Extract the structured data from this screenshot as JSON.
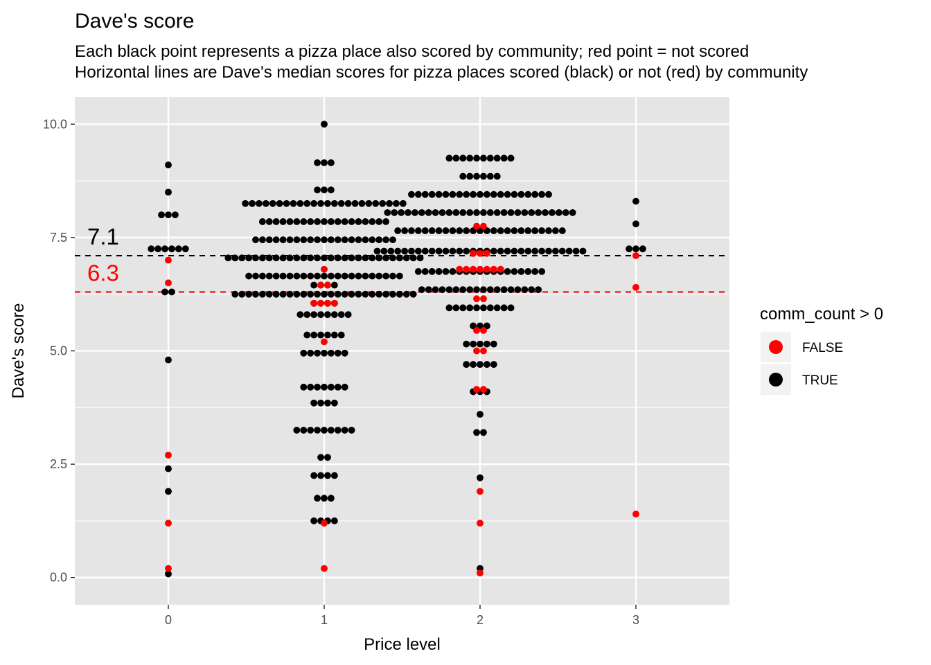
{
  "chart_data": {
    "type": "scatter",
    "title": "Dave's score",
    "subtitle_lines": [
      "Each black point represents a pizza place also scored by community; red point = not scored",
      "Horizontal lines are Dave's median scores for pizza places scored (black) or not (red) by community"
    ],
    "xlabel": "Price level",
    "ylabel": "Dave's score",
    "xlim": [
      -0.6,
      3.6
    ],
    "ylim": [
      -0.6,
      10.6
    ],
    "x_ticks": [
      0,
      1,
      2,
      3
    ],
    "x_tick_labels": [
      "0",
      "1",
      "2",
      "3"
    ],
    "y_ticks": [
      0,
      2.5,
      5,
      7.5,
      10
    ],
    "y_tick_labels": [
      "0.0",
      "2.5",
      "5.0",
      "7.5",
      "10.0"
    ],
    "grid": true,
    "legend": {
      "title": "comm_count > 0",
      "placement": "right",
      "entries": [
        {
          "label": "FALSE",
          "color": "#ff0000"
        },
        {
          "label": "TRUE",
          "color": "#000000"
        }
      ]
    },
    "medians": [
      {
        "group": "TRUE",
        "value": 7.1,
        "label": "7.1",
        "color": "#000000"
      },
      {
        "group": "FALSE",
        "value": 6.3,
        "label": "6.3",
        "color": "#ff0000"
      }
    ],
    "point_radius_data": 0.022,
    "series": [
      {
        "group": "TRUE",
        "color": "#000000",
        "bins": [
          {
            "x": 0,
            "y": 0.08,
            "n": 1
          },
          {
            "x": 0,
            "y": 1.9,
            "n": 1
          },
          {
            "x": 0,
            "y": 2.4,
            "n": 1
          },
          {
            "x": 0,
            "y": 4.8,
            "n": 1
          },
          {
            "x": 0,
            "y": 6.3,
            "n": 2
          },
          {
            "x": 0,
            "y": 7.25,
            "n": 6
          },
          {
            "x": 0,
            "y": 8.0,
            "n": 3
          },
          {
            "x": 0,
            "y": 8.5,
            "n": 1
          },
          {
            "x": 0,
            "y": 9.1,
            "n": 1
          },
          {
            "x": 1,
            "y": 1.25,
            "n": 4
          },
          {
            "x": 1,
            "y": 1.75,
            "n": 3
          },
          {
            "x": 1,
            "y": 2.25,
            "n": 4
          },
          {
            "x": 1,
            "y": 2.65,
            "n": 2
          },
          {
            "x": 1,
            "y": 3.25,
            "n": 9
          },
          {
            "x": 1,
            "y": 3.85,
            "n": 4
          },
          {
            "x": 1,
            "y": 4.2,
            "n": 7
          },
          {
            "x": 1,
            "y": 4.95,
            "n": 7
          },
          {
            "x": 1,
            "y": 5.35,
            "n": 6
          },
          {
            "x": 1,
            "y": 5.8,
            "n": 8
          },
          {
            "x": 1,
            "y": 6.05,
            "n": 4
          },
          {
            "x": 1,
            "y": 6.25,
            "n": 27
          },
          {
            "x": 1,
            "y": 6.45,
            "n": 4
          },
          {
            "x": 1,
            "y": 6.65,
            "n": 23
          },
          {
            "x": 1,
            "y": 7.05,
            "n": 29
          },
          {
            "x": 1,
            "y": 7.45,
            "n": 21
          },
          {
            "x": 1,
            "y": 7.85,
            "n": 19
          },
          {
            "x": 1,
            "y": 8.25,
            "n": 24
          },
          {
            "x": 1,
            "y": 8.55,
            "n": 3
          },
          {
            "x": 1,
            "y": 9.15,
            "n": 3
          },
          {
            "x": 1,
            "y": 10.0,
            "n": 1
          },
          {
            "x": 2,
            "y": 0.2,
            "n": 1
          },
          {
            "x": 2,
            "y": 2.2,
            "n": 1
          },
          {
            "x": 2,
            "y": 3.2,
            "n": 2
          },
          {
            "x": 2,
            "y": 3.6,
            "n": 1
          },
          {
            "x": 2,
            "y": 4.1,
            "n": 3
          },
          {
            "x": 2,
            "y": 4.7,
            "n": 5
          },
          {
            "x": 2,
            "y": 5.15,
            "n": 5
          },
          {
            "x": 2,
            "y": 5.55,
            "n": 3
          },
          {
            "x": 2,
            "y": 5.95,
            "n": 10
          },
          {
            "x": 2,
            "y": 6.35,
            "n": 18
          },
          {
            "x": 2,
            "y": 6.75,
            "n": 19
          },
          {
            "x": 2,
            "y": 7.2,
            "n": 31
          },
          {
            "x": 2,
            "y": 7.65,
            "n": 25
          },
          {
            "x": 2,
            "y": 8.05,
            "n": 28
          },
          {
            "x": 2,
            "y": 8.45,
            "n": 21
          },
          {
            "x": 2,
            "y": 8.85,
            "n": 6
          },
          {
            "x": 2,
            "y": 9.25,
            "n": 10
          },
          {
            "x": 3,
            "y": 7.25,
            "n": 3
          },
          {
            "x": 3,
            "y": 7.8,
            "n": 1
          },
          {
            "x": 3,
            "y": 8.3,
            "n": 1
          }
        ]
      },
      {
        "group": "FALSE",
        "color": "#ff0000",
        "bins": [
          {
            "x": 0,
            "y": 0.2,
            "n": 1
          },
          {
            "x": 0,
            "y": 1.2,
            "n": 1
          },
          {
            "x": 0,
            "y": 2.7,
            "n": 1
          },
          {
            "x": 0,
            "y": 6.5,
            "n": 1
          },
          {
            "x": 0,
            "y": 7.0,
            "n": 1
          },
          {
            "x": 1,
            "y": 0.2,
            "n": 1
          },
          {
            "x": 1,
            "y": 1.2,
            "n": 1
          },
          {
            "x": 1,
            "y": 5.2,
            "n": 1
          },
          {
            "x": 1,
            "y": 6.05,
            "n": 4
          },
          {
            "x": 1,
            "y": 6.45,
            "n": 2
          },
          {
            "x": 1,
            "y": 6.8,
            "n": 1
          },
          {
            "x": 2,
            "y": 0.1,
            "n": 1
          },
          {
            "x": 2,
            "y": 1.2,
            "n": 1
          },
          {
            "x": 2,
            "y": 1.9,
            "n": 1
          },
          {
            "x": 2,
            "y": 4.15,
            "n": 2
          },
          {
            "x": 2,
            "y": 5.0,
            "n": 2
          },
          {
            "x": 2,
            "y": 5.45,
            "n": 2
          },
          {
            "x": 2,
            "y": 6.15,
            "n": 2
          },
          {
            "x": 2,
            "y": 6.8,
            "n": 7
          },
          {
            "x": 2,
            "y": 7.15,
            "n": 3
          },
          {
            "x": 2,
            "y": 7.75,
            "n": 2
          },
          {
            "x": 3,
            "y": 1.4,
            "n": 1
          },
          {
            "x": 3,
            "y": 6.4,
            "n": 1
          },
          {
            "x": 3,
            "y": 7.1,
            "n": 1
          }
        ]
      }
    ]
  }
}
